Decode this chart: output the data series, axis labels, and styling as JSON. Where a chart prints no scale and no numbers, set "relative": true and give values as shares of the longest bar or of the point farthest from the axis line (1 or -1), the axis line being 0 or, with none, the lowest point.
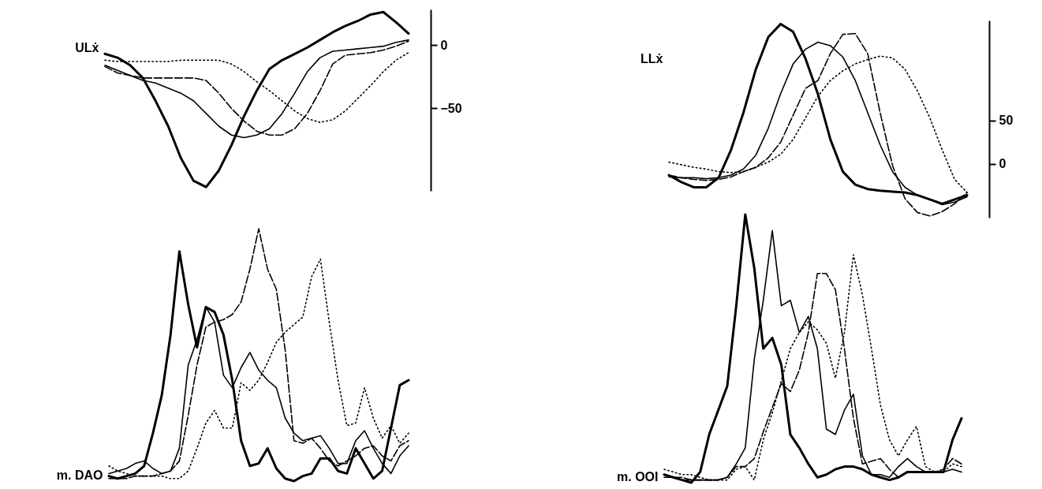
{
  "chart_data": [
    {
      "type": "line",
      "ylabel": "ULẋ",
      "tick_labels": "y",
      "ylim": [
        -115,
        28
      ],
      "yticks": [
        0,
        -50
      ],
      "categories": [
        null,
        null,
        null,
        null,
        null,
        null,
        null,
        null,
        null,
        null,
        null,
        null,
        null,
        null,
        null,
        null,
        null,
        null,
        null,
        null,
        null,
        null,
        null,
        null,
        null
      ],
      "series": [
        {
          "color": "#000000",
          "line_style": "solid",
          "values": [
            -7,
            -10,
            -16,
            -26,
            -44,
            -64,
            -89,
            -107,
            -112,
            -99,
            -79,
            -56,
            -36,
            -19,
            -12,
            -7,
            -2,
            4,
            10,
            15,
            19,
            24,
            26,
            18,
            9
          ]
        },
        {
          "color": "#000000",
          "line_style": "solid",
          "values": [
            -16,
            -20,
            -24,
            -28,
            -30,
            -34,
            -38,
            -44,
            -54,
            -64,
            -71,
            -73,
            -71,
            -66,
            -54,
            -38,
            -21,
            -10,
            -5,
            -4,
            -3,
            -2,
            -1,
            2,
            4
          ]
        },
        {
          "color": "#000000",
          "line_style": "dashed",
          "values": [
            -17,
            -22,
            -24,
            -26,
            -26,
            -26,
            -26,
            -26,
            -28,
            -38,
            -50,
            -60,
            -68,
            -71,
            -71,
            -66,
            -54,
            -36,
            -15,
            -8,
            -7,
            -6,
            -4,
            -1,
            3
          ]
        },
        {
          "color": "#000000",
          "line_style": "dotted",
          "values": [
            -12,
            -13,
            -13,
            -13,
            -13,
            -13,
            -12,
            -12,
            -12,
            -12,
            -15,
            -21,
            -29,
            -36,
            -44,
            -52,
            -58,
            -61,
            -59,
            -52,
            -42,
            -32,
            -21,
            -12,
            -6
          ]
        }
      ]
    },
    {
      "type": "line",
      "ylabel": "LLẋ",
      "tick_labels": "y",
      "ylim": [
        -62,
        165
      ],
      "yticks": [
        50,
        0
      ],
      "categories": [
        null,
        null,
        null,
        null,
        null,
        null,
        null,
        null,
        null,
        null,
        null,
        null,
        null,
        null,
        null,
        null,
        null,
        null,
        null,
        null,
        null,
        null,
        null,
        null,
        null
      ],
      "series": [
        {
          "color": "#000000",
          "line_style": "solid",
          "values": [
            -13,
            -21,
            -27,
            -27,
            -16,
            16,
            59,
            109,
            146,
            161,
            152,
            121,
            80,
            28,
            -9,
            -24,
            -29,
            -31,
            -32,
            -33,
            -36,
            -41,
            -46,
            -41,
            -36
          ]
        },
        {
          "color": "#000000",
          "line_style": "solid",
          "values": [
            -15,
            -16,
            -16,
            -17,
            -16,
            -13,
            -6,
            10,
            41,
            81,
            115,
            132,
            140,
            136,
            123,
            96,
            59,
            22,
            -9,
            -27,
            -36,
            -41,
            -47,
            -44,
            -38
          ]
        },
        {
          "color": "#000000",
          "line_style": "dashed",
          "values": [
            -13,
            -16,
            -18,
            -19,
            -18,
            -15,
            -9,
            -4,
            7,
            25,
            56,
            87,
            96,
            127,
            149,
            150,
            127,
            59,
            -2,
            -40,
            -56,
            -60,
            -55,
            -46,
            -33
          ]
        },
        {
          "color": "#000000",
          "line_style": "dotted",
          "values": [
            2,
            -1,
            -4,
            -6,
            -9,
            -10,
            -9,
            -4,
            2,
            11,
            28,
            53,
            78,
            96,
            107,
            115,
            120,
            124,
            122,
            109,
            84,
            53,
            16,
            -18,
            -33
          ]
        }
      ]
    },
    {
      "type": "line",
      "ylabel": "m. DAO",
      "relative": true,
      "tick_labels": false,
      "categories": [
        null,
        null,
        null,
        null,
        null,
        null,
        null,
        null,
        null,
        null,
        null,
        null,
        null,
        null,
        null,
        null,
        null,
        null,
        null,
        null,
        null,
        null,
        null,
        null,
        null,
        null,
        null,
        null,
        null,
        null,
        null,
        null,
        null,
        null,
        null
      ],
      "series": [
        {
          "color": "#000000",
          "line_style": "solid",
          "values": [
            0.02,
            0.01,
            0.02,
            0.03,
            0.06,
            0.19,
            0.34,
            0.58,
            0.91,
            0.7,
            0.53,
            0.69,
            0.67,
            0.58,
            0.4,
            0.16,
            0.06,
            0.07,
            0.13,
            0.05,
            0.01,
            0,
            0.02,
            0.03,
            0.09,
            0.09,
            0.04,
            0.03,
            0.13,
            0.07,
            0.01,
            0.04,
            0.21,
            0.38,
            0.4
          ]
        },
        {
          "color": "#000000",
          "line_style": "solid",
          "values": [
            0.03,
            0.04,
            0.05,
            0.07,
            0.08,
            0.05,
            0.03,
            0.04,
            0.13,
            0.46,
            0.56,
            0.69,
            0.63,
            0.42,
            0.37,
            0.45,
            0.51,
            0.44,
            0.4,
            0.37,
            0.25,
            0.19,
            0.16,
            0.17,
            0.18,
            0.13,
            0.07,
            0.07,
            0.16,
            0.2,
            0.13,
            0.07,
            0.03,
            0.1,
            0.14
          ]
        },
        {
          "color": "#000000",
          "line_style": "dashed",
          "values": [
            0.01,
            0.01,
            0.01,
            0.02,
            0.02,
            0.02,
            0.03,
            0.04,
            0.08,
            0.26,
            0.46,
            0.61,
            0.63,
            0.64,
            0.66,
            0.71,
            0.84,
            1,
            0.84,
            0.76,
            0.52,
            0.16,
            0.15,
            0.17,
            0.13,
            0.08,
            0.06,
            0.08,
            0.1,
            0.13,
            0.14,
            0.1,
            0.08,
            0.14,
            0.16
          ]
        },
        {
          "color": "#000000",
          "line_style": "dotted",
          "values": [
            0.06,
            0.04,
            0.03,
            0.02,
            0.02,
            0.02,
            0.02,
            0.01,
            0.01,
            0.04,
            0.13,
            0.23,
            0.28,
            0.21,
            0.21,
            0.39,
            0.36,
            0.4,
            0.47,
            0.55,
            0.59,
            0.62,
            0.65,
            0.81,
            0.88,
            0.63,
            0.4,
            0.22,
            0.23,
            0.37,
            0.25,
            0.17,
            0.22,
            0.15,
            0.19
          ]
        }
      ]
    },
    {
      "type": "line",
      "ylabel": "m. OOI",
      "relative": true,
      "tick_labels": false,
      "categories": [
        null,
        null,
        null,
        null,
        null,
        null,
        null,
        null,
        null,
        null,
        null,
        null,
        null,
        null,
        null,
        null,
        null,
        null,
        null,
        null,
        null,
        null,
        null,
        null,
        null,
        null,
        null,
        null,
        null,
        null,
        null,
        null,
        null,
        null
      ],
      "series": [
        {
          "color": "#000000",
          "line_style": "solid",
          "values": [
            0.03,
            0.02,
            0.01,
            0,
            0.04,
            0.18,
            0.27,
            0.36,
            0.66,
            1,
            0.8,
            0.5,
            0.54,
            0.44,
            0.18,
            0.13,
            0.07,
            0.02,
            0.03,
            0.05,
            0.06,
            0.06,
            0.05,
            0.03,
            0.02,
            0.01,
            0.02,
            0.04,
            0.04,
            0.04,
            0.04,
            0.04,
            0.16,
            0.24
          ]
        },
        {
          "color": "#000000",
          "line_style": "solid",
          "values": [
            0.02,
            0.02,
            0.01,
            0.01,
            0.01,
            0.01,
            0.01,
            0.02,
            0.07,
            0.13,
            0.46,
            0.68,
            0.94,
            0.66,
            0.68,
            0.56,
            0.62,
            0.5,
            0.2,
            0.18,
            0.27,
            0.33,
            0.1,
            0.03,
            0.03,
            0.02,
            0.06,
            0.09,
            0.06,
            0.04,
            0.04,
            0.04,
            0.05,
            0.04
          ]
        },
        {
          "color": "#000000",
          "line_style": "dashed",
          "values": [
            0.03,
            0.02,
            0.02,
            0.01,
            0.01,
            0.01,
            0.01,
            0.02,
            0.06,
            0.06,
            0.09,
            0.19,
            0.28,
            0.37,
            0.34,
            0.42,
            0.56,
            0.78,
            0.78,
            0.72,
            0.5,
            0.24,
            0.07,
            0.08,
            0.09,
            0.05,
            0.02,
            0.04,
            0.04,
            0.04,
            0.04,
            0.05,
            0.09,
            0.07
          ]
        },
        {
          "color": "#000000",
          "line_style": "dotted",
          "values": [
            0.05,
            0.04,
            0.03,
            0.03,
            0.02,
            0.01,
            0.01,
            0.01,
            0.05,
            0.06,
            0.01,
            0.16,
            0.26,
            0.38,
            0.5,
            0.56,
            0.6,
            0.57,
            0.52,
            0.39,
            0.56,
            0.85,
            0.7,
            0.5,
            0.29,
            0.16,
            0.1,
            0.16,
            0.21,
            0.06,
            0.04,
            0.04,
            0.07,
            0.06
          ]
        }
      ]
    }
  ]
}
